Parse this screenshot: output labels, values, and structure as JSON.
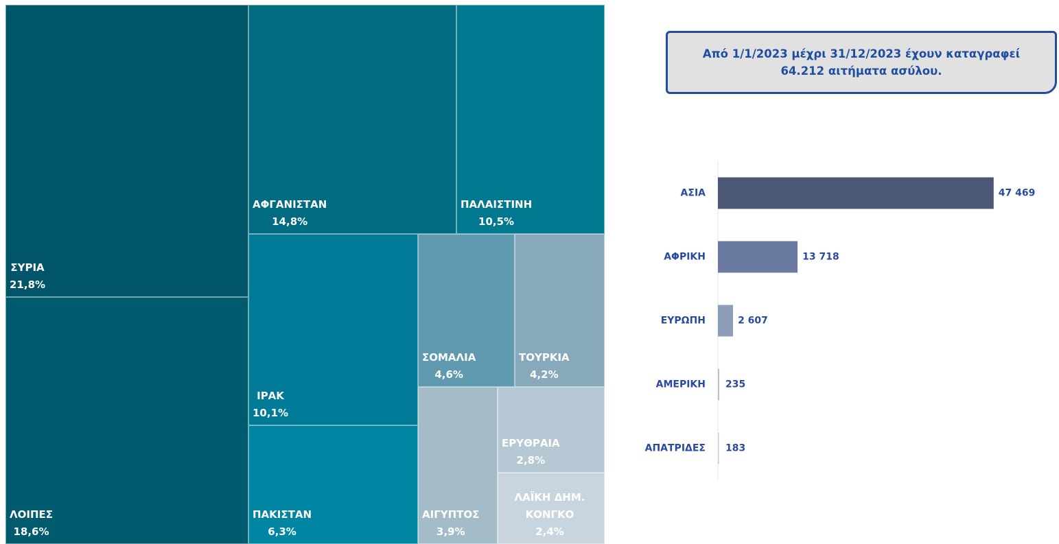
{
  "chart_data": [
    {
      "type": "treemap",
      "categories": [
        "ΣΥΡΙΑ",
        "ΛΟΙΠΕΣ",
        "ΑΦΓΑΝΙΣΤΑΝ",
        "ΠΑΛΑΙΣΤΙΝΗ",
        "ΙΡΑΚ",
        "ΠΑΚΙΣΤΑΝ",
        "ΣΟΜΑΛΙΑ",
        "ΤΟΥΡΚΙΑ",
        "ΑΙΓΥΠΤΟΣ",
        "ΕΡΥΘΡΑΙΑ",
        "ΛΑΪΚΗ ΔΗΜ. ΚΟΝΓΚΟ"
      ],
      "values": [
        21.8,
        18.6,
        14.8,
        10.5,
        10.1,
        6.3,
        4.6,
        4.2,
        3.9,
        2.8,
        2.4
      ],
      "value_labels": [
        "21,8%",
        "18,6%",
        "14,8%",
        "10,5%",
        "10,1%",
        "6,3%",
        "4,6%",
        "4,2%",
        "3,9%",
        "2,8%",
        "2,4%"
      ],
      "colors": [
        "#005568",
        "#005b6f",
        "#006b81",
        "#00788f",
        "#007a96",
        "#0085a3",
        "#5f9ab1",
        "#87a9bb",
        "#a3bcc8",
        "#b5c8d3",
        "#c9d5de"
      ]
    },
    {
      "type": "bar",
      "orientation": "horizontal",
      "annotation": "Από 1/1/2023 μέχρι 31/12/2023 έχουν καταγραφεί 64.212 αιτήματα ασύλου.",
      "categories": [
        "ΑΣΙΑ",
        "ΑΦΡΙΚΗ",
        "ΕΥΡΩΠΗ",
        "ΑΜΕΡΙΚΗ",
        "ΑΠΑΤΡΙΔΕΣ"
      ],
      "values": [
        47469,
        13718,
        2607,
        235,
        183
      ],
      "value_labels": [
        "47 469",
        "13 718",
        "2 607",
        "235",
        "183"
      ],
      "colors": [
        "#4a5775",
        "#6a7aa0",
        "#8e9dba",
        "#b4bfd4",
        "#c8d0e0"
      ],
      "xlim": [
        0,
        56000
      ]
    }
  ]
}
